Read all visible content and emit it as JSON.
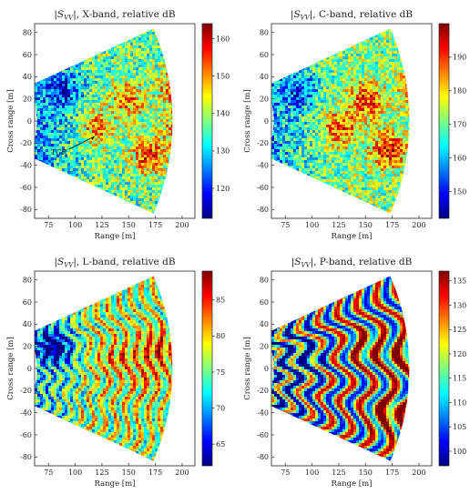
{
  "figure": {
    "colors": {
      "jet": [
        "#00007f",
        "#0000ff",
        "#007fff",
        "#00ffff",
        "#7fff7f",
        "#ffff00",
        "#ff7f00",
        "#ff0000",
        "#7f0000"
      ],
      "axis": "#222222",
      "background": "#ffffff"
    }
  },
  "chart_data": [
    {
      "type": "heatmap",
      "title": "|S_VV|, X-band, relative dB",
      "title_sub": "VV",
      "title_suffix": "|, X-band, relative dB",
      "xlabel": "Range [m]",
      "ylabel": "Cross range [m]",
      "xlim": [
        62,
        212
      ],
      "ylim": [
        -88,
        88
      ],
      "xticks": [
        75,
        100,
        125,
        150,
        175,
        200
      ],
      "yticks": [
        -80,
        -60,
        -40,
        -20,
        0,
        20,
        40,
        60,
        80
      ],
      "colorbar": {
        "min": 112,
        "max": 164,
        "ticks": [
          120,
          130,
          140,
          150,
          160
        ]
      },
      "grid": false,
      "annotation": {
        "text": "TCR",
        "target": [
          118,
          -14
        ]
      },
      "hotspots": [
        {
          "x": 120,
          "y": -5,
          "value": 150
        },
        {
          "x": 148,
          "y": 20,
          "value": 152
        },
        {
          "x": 168,
          "y": -30,
          "value": 155
        },
        {
          "x": 196,
          "y": 30,
          "value": 160
        },
        {
          "x": 200,
          "y": -5,
          "value": 156
        },
        {
          "x": 88,
          "y": 28,
          "value": 124
        }
      ]
    },
    {
      "type": "heatmap",
      "title": "|S_VV|, C-band, relative dB",
      "title_sub": "VV",
      "title_suffix": "|, C-band, relative dB",
      "xlabel": "Range [m]",
      "ylabel": "Cross range [m]",
      "xlim": [
        62,
        212
      ],
      "ylim": [
        -88,
        88
      ],
      "xticks": [
        75,
        100,
        125,
        150,
        175,
        200
      ],
      "yticks": [
        -80,
        -60,
        -40,
        -20,
        0,
        20,
        40,
        60,
        80
      ],
      "colorbar": {
        "min": 142,
        "max": 200,
        "ticks": [
          150,
          160,
          170,
          180,
          190
        ]
      },
      "grid": false,
      "hotspots": [
        {
          "x": 125,
          "y": -5,
          "value": 188
        },
        {
          "x": 150,
          "y": 20,
          "value": 190
        },
        {
          "x": 170,
          "y": -25,
          "value": 192
        },
        {
          "x": 198,
          "y": 30,
          "value": 194
        },
        {
          "x": 88,
          "y": 28,
          "value": 158
        }
      ]
    },
    {
      "type": "heatmap",
      "title": "|S_VV|, L-band, relative dB",
      "title_sub": "VV",
      "title_suffix": "|, L-band, relative dB",
      "xlabel": "Range [m]",
      "ylabel": "Cross range [m]",
      "xlim": [
        62,
        212
      ],
      "ylim": [
        -88,
        88
      ],
      "xticks": [
        75,
        100,
        125,
        150,
        175,
        200
      ],
      "yticks": [
        -80,
        -60,
        -40,
        -20,
        0,
        20,
        40,
        60,
        80
      ],
      "colorbar": {
        "min": 62,
        "max": 89,
        "ticks": [
          65,
          70,
          75,
          80,
          85
        ]
      },
      "grid": false,
      "hotspots": [
        {
          "x": 140,
          "y": 10,
          "value": 82
        },
        {
          "x": 175,
          "y": 20,
          "value": 84
        },
        {
          "x": 165,
          "y": -10,
          "value": 80
        },
        {
          "x": 80,
          "y": 20,
          "value": 64
        }
      ]
    },
    {
      "type": "heatmap",
      "title": "|S_VV|, P-band, relative dB",
      "title_sub": "VV",
      "title_suffix": "|, P-band, relative dB",
      "xlabel": "Range [m]",
      "ylabel": "Cross range [m]",
      "xlim": [
        62,
        212
      ],
      "ylim": [
        -88,
        88
      ],
      "xticks": [
        75,
        100,
        125,
        150,
        175,
        200
      ],
      "yticks": [
        -80,
        -60,
        -40,
        -20,
        0,
        20,
        40,
        60,
        80
      ],
      "colorbar": {
        "min": 97,
        "max": 137,
        "ticks": [
          100,
          105,
          110,
          115,
          120,
          125,
          130,
          135
        ]
      },
      "grid": false,
      "hotspots": [
        {
          "x": 170,
          "y": -40,
          "value": 134
        },
        {
          "x": 150,
          "y": 20,
          "value": 128
        },
        {
          "x": 185,
          "y": 10,
          "value": 130
        },
        {
          "x": 95,
          "y": 10,
          "value": 108
        }
      ]
    }
  ]
}
